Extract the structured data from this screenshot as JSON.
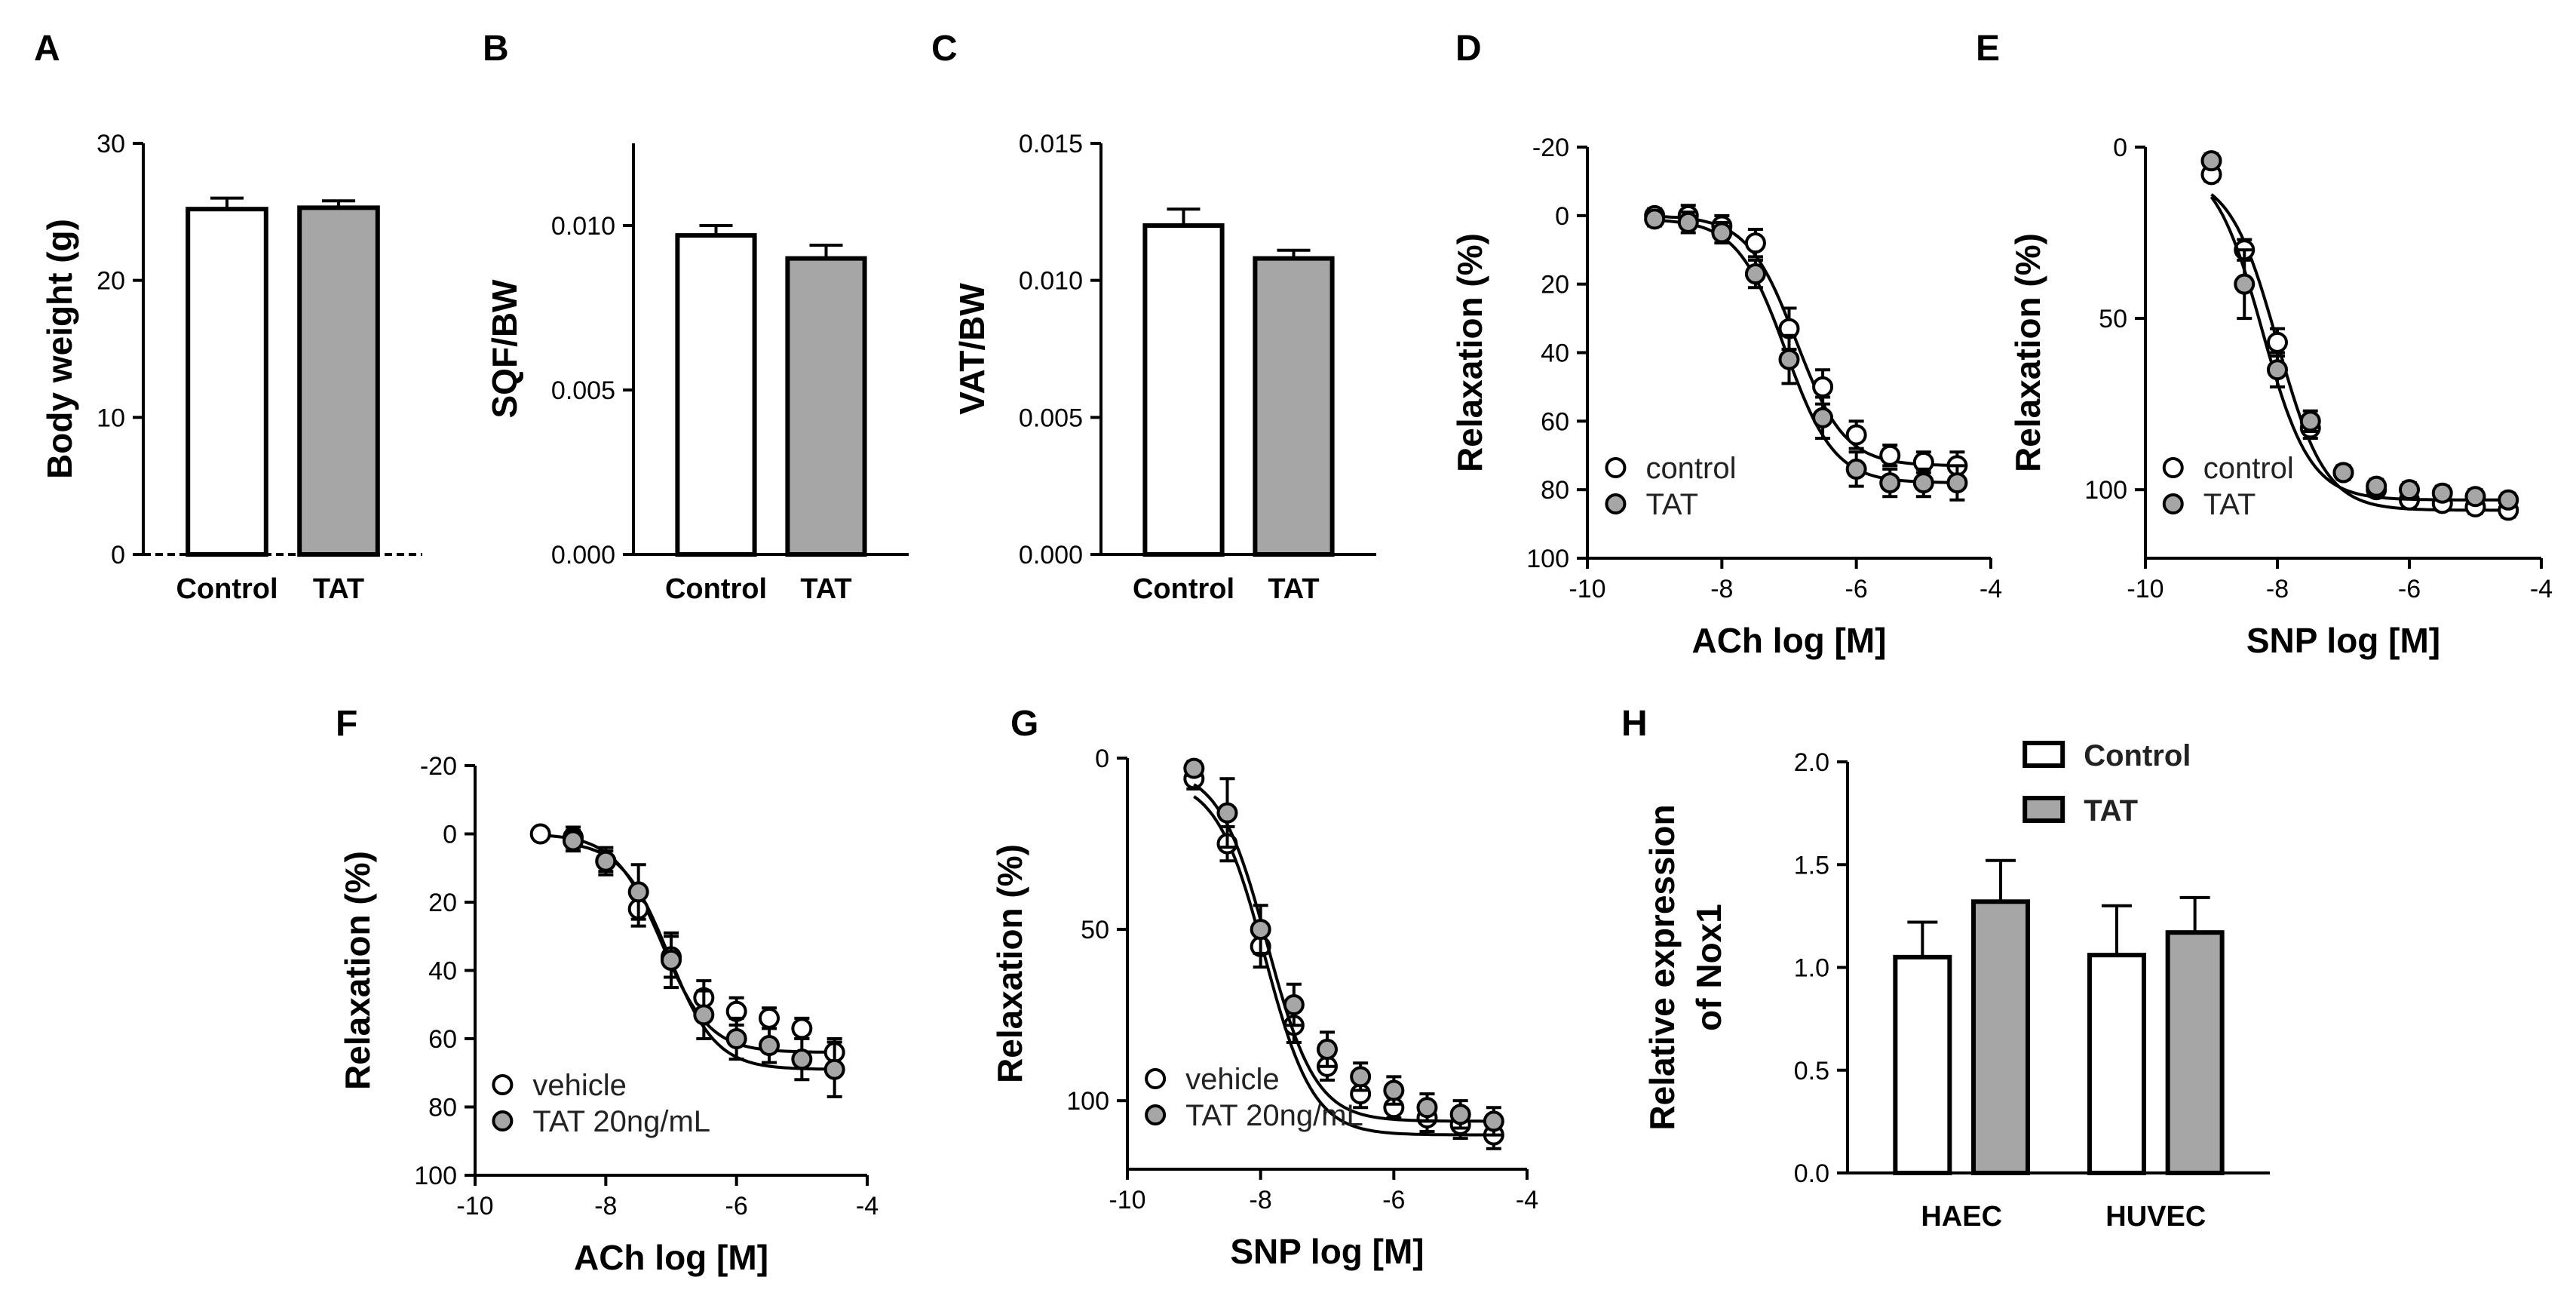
{
  "colors": {
    "control": "#ffffff",
    "treated": "#a6a6a6",
    "ink": "#000000"
  },
  "chart_data": [
    {
      "panel": "A",
      "type": "bar",
      "ylabel": "Body weight (g)",
      "xlabel": "",
      "ylim": [
        0,
        30
      ],
      "yticks": [
        0,
        10,
        20,
        30
      ],
      "categories": [
        "Control",
        "TAT"
      ],
      "values": [
        25.2,
        25.3
      ],
      "errors": [
        0.8,
        0.5
      ],
      "fill_keys": [
        "control",
        "treated"
      ]
    },
    {
      "panel": "B",
      "type": "bar",
      "ylabel": "SQF/BW",
      "xlabel": "",
      "ylim": [
        0,
        0.0125
      ],
      "yticks": [
        "0.000",
        "0.005",
        "0.010"
      ],
      "ytick_values": [
        0,
        0.005,
        0.01
      ],
      "categories": [
        "Control",
        "TAT"
      ],
      "values": [
        0.0097,
        0.009
      ],
      "errors": [
        0.0003,
        0.0004
      ],
      "fill_keys": [
        "control",
        "treated"
      ]
    },
    {
      "panel": "C",
      "type": "bar",
      "ylabel": "VAT/BW",
      "xlabel": "",
      "ylim": [
        0,
        0.015
      ],
      "yticks": [
        "0.000",
        "0.005",
        "0.010",
        "0.015"
      ],
      "ytick_values": [
        0,
        0.005,
        0.01,
        0.015
      ],
      "categories": [
        "Control",
        "TAT"
      ],
      "values": [
        0.012,
        0.0108
      ],
      "errors": [
        0.0006,
        0.0003
      ],
      "fill_keys": [
        "control",
        "treated"
      ]
    },
    {
      "panel": "D",
      "type": "scatter",
      "xlabel": "ACh log [M]",
      "ylabel": "Relaxation (%)",
      "xlim": [
        -10,
        -4
      ],
      "xticks": [
        -10,
        -8,
        -6,
        -4
      ],
      "ylim": [
        -20,
        100
      ],
      "yreversed": true,
      "yticks": [
        -20,
        0,
        20,
        40,
        60,
        80,
        100
      ],
      "fit": "sigmoid",
      "series": [
        {
          "name": "control",
          "fill_key": "control",
          "x": [
            -9,
            -8.5,
            -8,
            -7.5,
            -7,
            -6.5,
            -6,
            -5.5,
            -5,
            -4.5
          ],
          "y": [
            0,
            0,
            3,
            8,
            33,
            50,
            64,
            70,
            72,
            73
          ],
          "err": [
            2,
            3,
            3,
            4,
            6,
            5,
            4,
            3,
            3,
            4
          ]
        },
        {
          "name": "TAT",
          "fill_key": "treated",
          "x": [
            -9,
            -8.5,
            -8,
            -7.5,
            -7,
            -6.5,
            -6,
            -5.5,
            -5,
            -4.5
          ],
          "y": [
            1,
            2,
            5,
            17,
            42,
            59,
            74,
            78,
            78,
            78
          ],
          "err": [
            2,
            3,
            3,
            4,
            7,
            6,
            5,
            4,
            4,
            5
          ]
        }
      ],
      "legend": [
        "control",
        "TAT"
      ]
    },
    {
      "panel": "E",
      "type": "scatter",
      "xlabel": "SNP log [M]",
      "ylabel": "Relaxation (%)",
      "xlim": [
        -10,
        -4
      ],
      "xticks": [
        -10,
        -8,
        -6,
        -4
      ],
      "ylim": [
        0,
        120
      ],
      "yreversed": true,
      "yticks": [
        0,
        50,
        100
      ],
      "fit": "sigmoid",
      "series": [
        {
          "name": "control",
          "fill_key": "control",
          "x": [
            -9,
            -8.5,
            -8,
            -7.5,
            -7,
            -6.5,
            -6,
            -5.5,
            -5,
            -4.5
          ],
          "y": [
            8,
            30,
            57,
            82,
            95,
            100,
            103,
            104,
            105,
            106
          ],
          "err": [
            2,
            3,
            4,
            3,
            2,
            2,
            2,
            2,
            2,
            2
          ]
        },
        {
          "name": "TAT",
          "fill_key": "treated",
          "x": [
            -9,
            -8.5,
            -8,
            -7.5,
            -7,
            -6.5,
            -6,
            -5.5,
            -5,
            -4.5
          ],
          "y": [
            4,
            40,
            65,
            80,
            95,
            99,
            100,
            101,
            102,
            103
          ],
          "err": [
            2,
            10,
            5,
            3,
            2,
            2,
            2,
            2,
            2,
            2
          ]
        }
      ],
      "legend": [
        "control",
        "TAT"
      ]
    },
    {
      "panel": "F",
      "type": "scatter",
      "xlabel": "ACh log [M]",
      "ylabel": "Relaxation (%)",
      "xlim": [
        -10,
        -4
      ],
      "xticks": [
        -10,
        -8,
        -6,
        -4
      ],
      "ylim": [
        -20,
        100
      ],
      "yreversed": true,
      "yticks": [
        -20,
        0,
        20,
        40,
        60,
        80,
        100
      ],
      "fit": "sigmoid",
      "series": [
        {
          "name": "vehicle",
          "fill_key": "control",
          "x": [
            -9,
            -8.5,
            -8,
            -7.5,
            -7,
            -6.5,
            -6,
            -5.5,
            -5,
            -4.5
          ],
          "y": [
            0,
            1,
            8,
            22,
            36,
            48,
            52,
            54,
            57,
            64
          ],
          "err": [
            1,
            3,
            3,
            5,
            6,
            5,
            4,
            3,
            3,
            4
          ]
        },
        {
          "name": "TAT 20ng/mL",
          "fill_key": "treated",
          "x": [
            -8.5,
            -8,
            -7.5,
            -7,
            -6.5,
            -6,
            -5.5,
            -5,
            -4.5
          ],
          "y": [
            2,
            8,
            17,
            37,
            53,
            60,
            62,
            66,
            69
          ],
          "err": [
            3,
            4,
            8,
            8,
            7,
            6,
            5,
            6,
            8
          ]
        }
      ],
      "legend": [
        "vehicle",
        "TAT 20ng/mL"
      ]
    },
    {
      "panel": "G",
      "type": "scatter",
      "xlabel": "SNP log [M]",
      "ylabel": "Relaxation (%)",
      "xlim": [
        -10,
        -4
      ],
      "xticks": [
        -10,
        -8,
        -6,
        -4
      ],
      "ylim": [
        0,
        120
      ],
      "yreversed": true,
      "yticks": [
        0,
        50,
        100
      ],
      "fit": "sigmoid",
      "series": [
        {
          "name": "vehicle",
          "fill_key": "control",
          "x": [
            -9,
            -8.5,
            -8,
            -7.5,
            -7,
            -6.5,
            -6,
            -5.5,
            -5,
            -4.5
          ],
          "y": [
            6,
            25,
            55,
            78,
            90,
            98,
            102,
            105,
            107,
            110
          ],
          "err": [
            3,
            5,
            6,
            5,
            4,
            4,
            3,
            4,
            4,
            4
          ]
        },
        {
          "name": "TAT 20ng/mL",
          "fill_key": "treated",
          "x": [
            -9,
            -8.5,
            -8,
            -7.5,
            -7,
            -6.5,
            -6,
            -5.5,
            -5,
            -4.5
          ],
          "y": [
            3,
            16,
            50,
            72,
            85,
            93,
            97,
            102,
            104,
            106
          ],
          "err": [
            2,
            10,
            7,
            6,
            5,
            4,
            4,
            4,
            4,
            4
          ]
        }
      ],
      "legend": [
        "vehicle",
        "TAT 20ng/mL"
      ]
    },
    {
      "panel": "H",
      "type": "bar",
      "ylabel": "Relative expression of Nox1",
      "ylabel_lines": [
        "Relative expression",
        "of Nox1"
      ],
      "xlabel": "",
      "ylim": [
        0,
        2.0
      ],
      "yticks": [
        "0.0",
        "0.5",
        "1.0",
        "1.5",
        "2.0"
      ],
      "ytick_values": [
        0,
        0.5,
        1,
        1.5,
        2
      ],
      "categories": [
        "HAEC",
        "HUVEC"
      ],
      "series": [
        {
          "name": "Control",
          "fill_key": "control",
          "values": [
            1.05,
            1.06
          ],
          "errors": [
            0.17,
            0.24
          ]
        },
        {
          "name": "TAT",
          "fill_key": "treated",
          "values": [
            1.32,
            1.17
          ],
          "errors": [
            0.2,
            0.17
          ]
        }
      ],
      "legend": [
        "Control",
        "TAT"
      ]
    }
  ]
}
